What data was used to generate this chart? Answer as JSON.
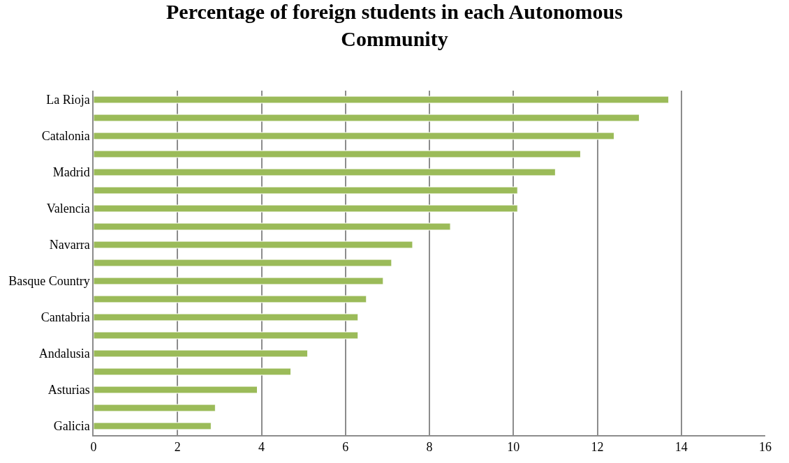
{
  "chart_data": {
    "type": "bar",
    "orientation": "horizontal",
    "title": "Percentage of foreign students in each Autonomous Community",
    "categories": [
      "La Rioja",
      null,
      "Catalonia",
      null,
      "Madrid",
      null,
      "Valencia",
      null,
      "Navarra",
      null,
      "Basque Country",
      null,
      "Cantabria",
      null,
      "Andalusia",
      null,
      "Asturias",
      null,
      "Galicia"
    ],
    "values": [
      13.7,
      13.0,
      12.4,
      11.6,
      11.0,
      10.1,
      10.1,
      8.5,
      7.6,
      7.1,
      6.9,
      6.5,
      6.3,
      6.3,
      5.1,
      4.7,
      3.9,
      2.9,
      2.8
    ],
    "color": "#9bbb59",
    "xlim": [
      0,
      16
    ],
    "xticks": [
      0,
      2,
      4,
      6,
      8,
      10,
      12,
      14,
      16
    ],
    "grid": "x",
    "legend": false
  }
}
